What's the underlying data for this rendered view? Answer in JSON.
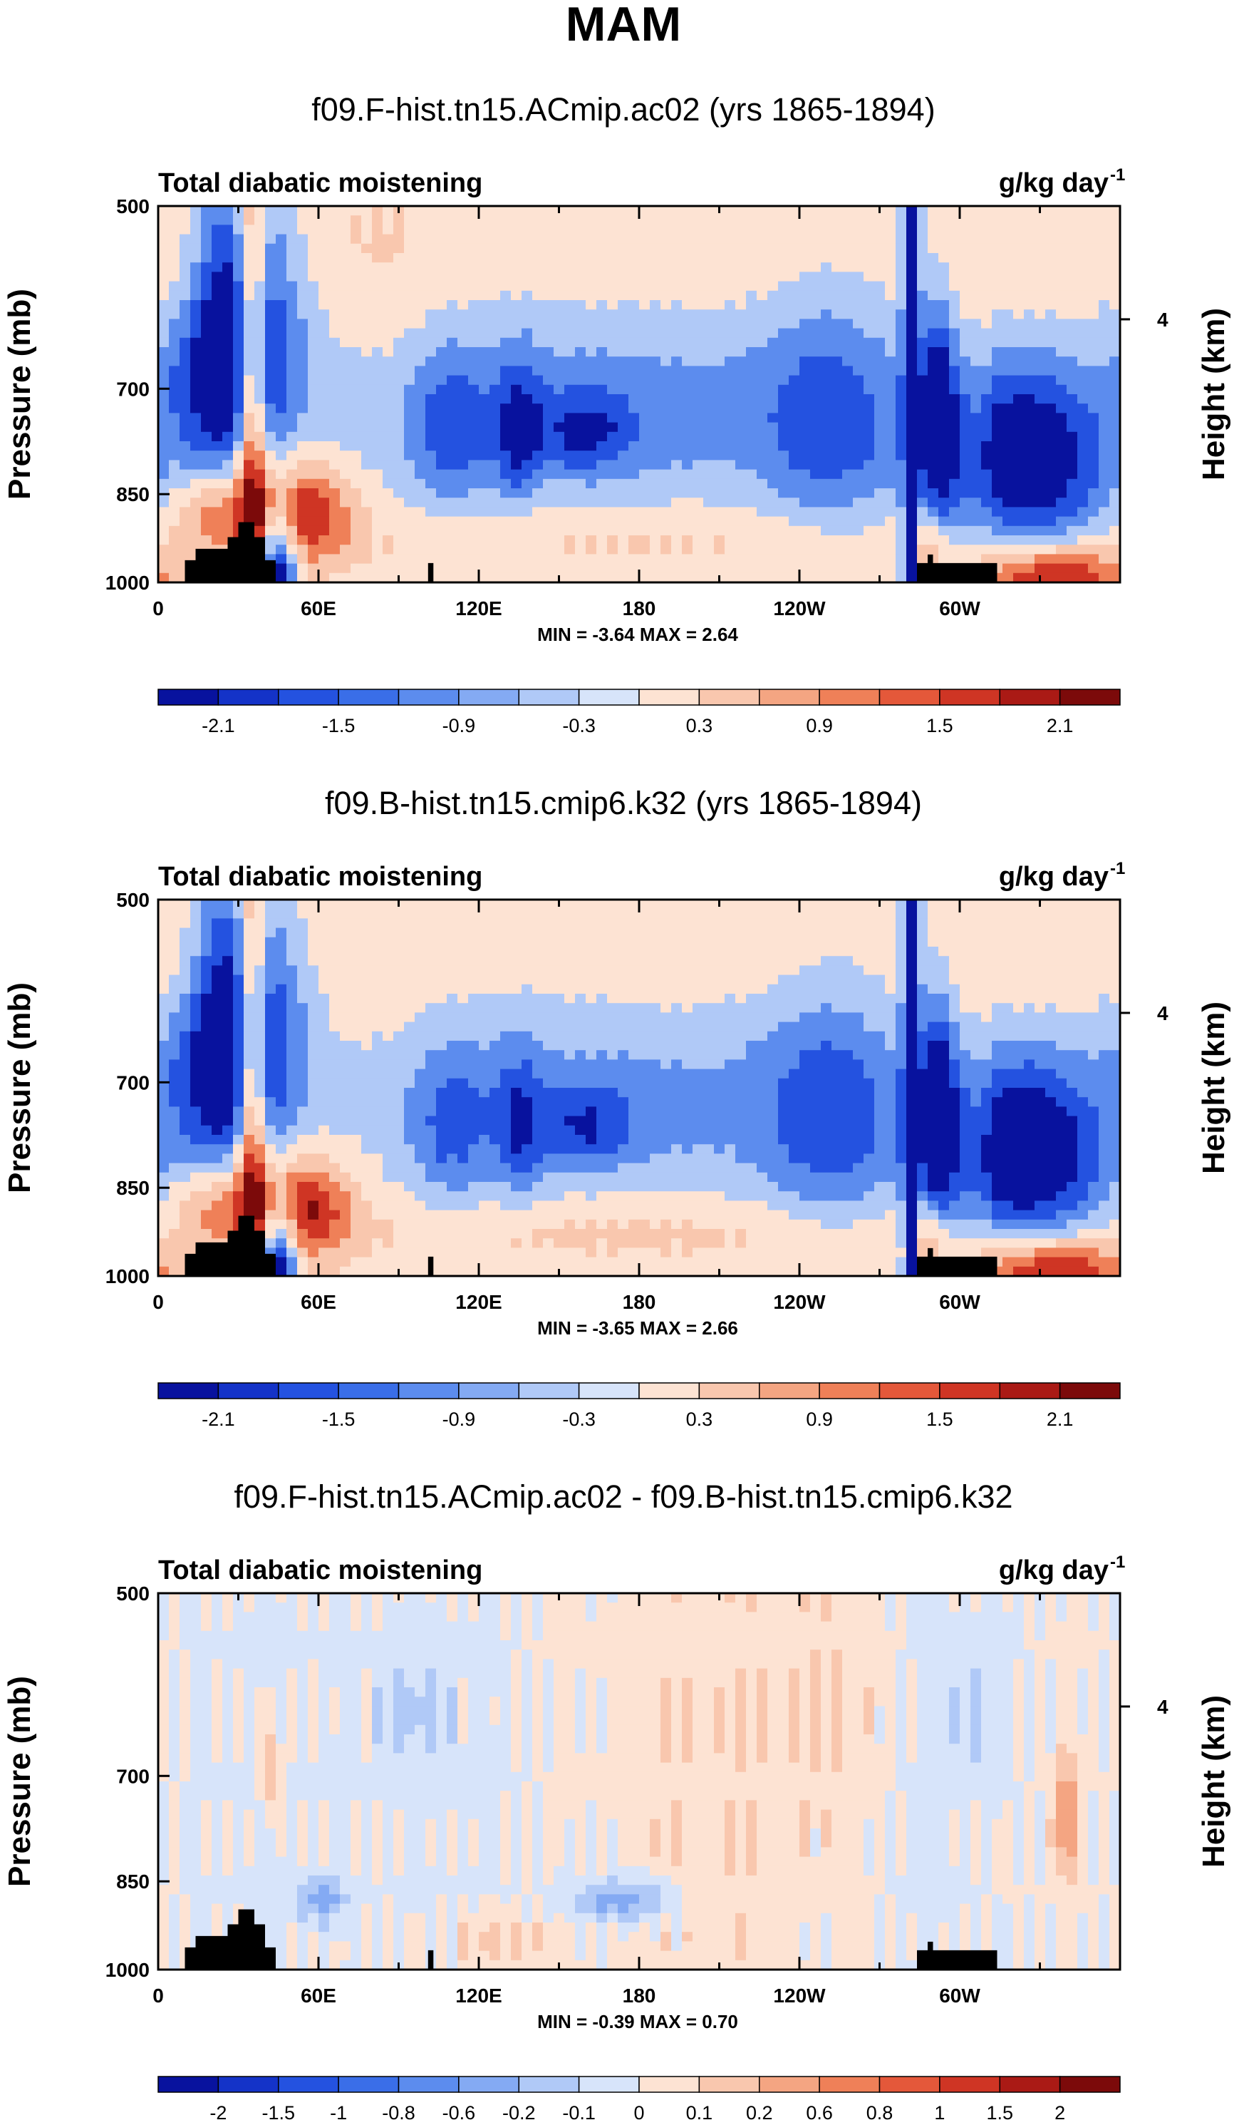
{
  "figure_title": "MAM",
  "chart_data": [
    {
      "type": "heatmap",
      "title": "f09.F-hist.tn15.ACmip.ac02 (yrs 1865-1894)",
      "left_string": "Total diabatic moistening",
      "right_string": "g/kg day",
      "right_string_superscript": "-1",
      "ylabel": "Pressure (mb)",
      "y2label": "Height (km)",
      "y2_ticks": [
        "4"
      ],
      "y2_tick_pressure": 616,
      "xlabel": "",
      "x_ticks": [
        "0",
        "60E",
        "120E",
        "180",
        "120W",
        "60W"
      ],
      "y_ticks": [
        "500",
        "700",
        "850",
        "1000"
      ],
      "xlim": [
        0,
        360
      ],
      "ylim": [
        1000,
        500
      ],
      "stats": "MIN = -3.64  MAX =  2.64",
      "min": -3.64,
      "max": 2.64,
      "colorbar_levels": [
        "-2.1",
        "-1.5",
        "-0.9",
        "-0.3",
        "0.3",
        "0.9",
        "1.5",
        "2.1"
      ],
      "colorbar_colors": [
        "#08129e",
        "#1433c8",
        "#2452e0",
        "#3a6ee8",
        "#5c8cee",
        "#84aaf3",
        "#b0c9f7",
        "#d7e4fa",
        "#fde3d3",
        "#f9c7ae",
        "#f4a582",
        "#ef8058",
        "#e4583a",
        "#cf3524",
        "#aa1a15",
        "#7c0a0a"
      ],
      "value_scale": 0.45,
      "features": [
        {
          "lon": 28,
          "p": 650,
          "slon": 16,
          "sp": 120,
          "amp": -3.3
        },
        {
          "lon": 35,
          "p": 700,
          "slon": 4,
          "sp": 200,
          "amp": 3.0
        },
        {
          "lon": 52,
          "p": 880,
          "slon": 14,
          "sp": 60,
          "amp": 2.4
        },
        {
          "lon": 20,
          "p": 880,
          "slon": 12,
          "sp": 50,
          "amp": 1.4
        },
        {
          "lon": 45,
          "p": 960,
          "slon": 5,
          "sp": 70,
          "amp": -3.0
        },
        {
          "lon": 10,
          "p": 560,
          "slon": 8,
          "sp": 60,
          "amp": 0.8
        },
        {
          "lon": 80,
          "p": 560,
          "slon": 25,
          "sp": 80,
          "amp": 0.4
        },
        {
          "lon": 170,
          "p": 730,
          "slon": 80,
          "sp": 100,
          "amp": -1.2
        },
        {
          "lon": 160,
          "p": 760,
          "slon": 12,
          "sp": 40,
          "amp": -1.3
        },
        {
          "lon": 110,
          "p": 760,
          "slon": 10,
          "sp": 80,
          "amp": -1.2
        },
        {
          "lon": 135,
          "p": 760,
          "slon": 6,
          "sp": 70,
          "amp": -1.5
        },
        {
          "lon": 180,
          "p": 920,
          "slon": 90,
          "sp": 40,
          "amp": 0.5
        },
        {
          "lon": 200,
          "p": 540,
          "slon": 60,
          "sp": 60,
          "amp": 0.35
        },
        {
          "lon": 252,
          "p": 750,
          "slon": 18,
          "sp": 120,
          "amp": -1.3
        },
        {
          "lon": 282,
          "p": 700,
          "slon": 2,
          "sp": 500,
          "amp": -3.6
        },
        {
          "lon": 292,
          "p": 740,
          "slon": 4,
          "sp": 100,
          "amp": -2.6
        },
        {
          "lon": 287,
          "p": 940,
          "slon": 5,
          "sp": 50,
          "amp": 1.0
        },
        {
          "lon": 325,
          "p": 800,
          "slon": 22,
          "sp": 100,
          "amp": -2.9
        },
        {
          "lon": 335,
          "p": 990,
          "slon": 20,
          "sp": 40,
          "amp": 2.4
        },
        {
          "lon": 330,
          "p": 560,
          "slon": 25,
          "sp": 60,
          "amp": 0.35
        },
        {
          "lon": 308,
          "p": 780,
          "slon": 3,
          "sp": 100,
          "amp": 0.5
        }
      ]
    },
    {
      "type": "heatmap",
      "title": "f09.B-hist.tn15.cmip6.k32 (yrs 1865-1894)",
      "left_string": "Total diabatic moistening",
      "right_string": "g/kg day",
      "right_string_superscript": "-1",
      "ylabel": "Pressure (mb)",
      "y2label": "Height (km)",
      "y2_ticks": [
        "4"
      ],
      "y2_tick_pressure": 616,
      "xlabel": "",
      "x_ticks": [
        "0",
        "60E",
        "120E",
        "180",
        "120W",
        "60W"
      ],
      "y_ticks": [
        "500",
        "700",
        "850",
        "1000"
      ],
      "xlim": [
        0,
        360
      ],
      "ylim": [
        1000,
        500
      ],
      "stats": "MIN = -3.65  MAX =  2.66",
      "min": -3.65,
      "max": 2.66,
      "colorbar_levels": [
        "-2.1",
        "-1.5",
        "-0.9",
        "-0.3",
        "0.3",
        "0.9",
        "1.5",
        "2.1"
      ],
      "colorbar_colors": [
        "#08129e",
        "#1433c8",
        "#2452e0",
        "#3a6ee8",
        "#5c8cee",
        "#84aaf3",
        "#b0c9f7",
        "#d7e4fa",
        "#fde3d3",
        "#f9c7ae",
        "#f4a582",
        "#ef8058",
        "#e4583a",
        "#cf3524",
        "#aa1a15",
        "#7c0a0a"
      ],
      "value_scale": 0.45,
      "features": [
        {
          "lon": 28,
          "p": 650,
          "slon": 16,
          "sp": 120,
          "amp": -3.3
        },
        {
          "lon": 35,
          "p": 700,
          "slon": 4,
          "sp": 200,
          "amp": 3.0
        },
        {
          "lon": 52,
          "p": 880,
          "slon": 14,
          "sp": 60,
          "amp": 2.5
        },
        {
          "lon": 20,
          "p": 880,
          "slon": 12,
          "sp": 50,
          "amp": 1.3
        },
        {
          "lon": 45,
          "p": 960,
          "slon": 5,
          "sp": 70,
          "amp": -3.0
        },
        {
          "lon": 10,
          "p": 560,
          "slon": 8,
          "sp": 60,
          "amp": 0.8
        },
        {
          "lon": 80,
          "p": 560,
          "slon": 25,
          "sp": 80,
          "amp": 0.3
        },
        {
          "lon": 170,
          "p": 730,
          "slon": 80,
          "sp": 100,
          "amp": -1.1
        },
        {
          "lon": 160,
          "p": 760,
          "slon": 12,
          "sp": 40,
          "amp": -1.2
        },
        {
          "lon": 110,
          "p": 760,
          "slon": 10,
          "sp": 80,
          "amp": -1.1
        },
        {
          "lon": 135,
          "p": 760,
          "slon": 6,
          "sp": 70,
          "amp": -1.3
        },
        {
          "lon": 180,
          "p": 920,
          "slon": 90,
          "sp": 40,
          "amp": 0.55
        },
        {
          "lon": 200,
          "p": 540,
          "slon": 60,
          "sp": 60,
          "amp": 0.35
        },
        {
          "lon": 252,
          "p": 750,
          "slon": 18,
          "sp": 120,
          "amp": -1.4
        },
        {
          "lon": 282,
          "p": 700,
          "slon": 2,
          "sp": 500,
          "amp": -3.6
        },
        {
          "lon": 292,
          "p": 740,
          "slon": 4,
          "sp": 100,
          "amp": -2.6
        },
        {
          "lon": 287,
          "p": 940,
          "slon": 5,
          "sp": 50,
          "amp": 1.0
        },
        {
          "lon": 325,
          "p": 800,
          "slon": 22,
          "sp": 100,
          "amp": -3.0
        },
        {
          "lon": 335,
          "p": 990,
          "slon": 20,
          "sp": 40,
          "amp": 2.4
        },
        {
          "lon": 330,
          "p": 560,
          "slon": 25,
          "sp": 60,
          "amp": 0.35
        },
        {
          "lon": 308,
          "p": 780,
          "slon": 3,
          "sp": 100,
          "amp": 0.5
        }
      ]
    },
    {
      "type": "heatmap",
      "title": "f09.F-hist.tn15.ACmip.ac02 - f09.B-hist.tn15.cmip6.k32",
      "left_string": "Total diabatic moistening",
      "right_string": "g/kg day",
      "right_string_superscript": "-1",
      "ylabel": "Pressure (mb)",
      "y2label": "Height (km)",
      "y2_ticks": [
        "4"
      ],
      "y2_tick_pressure": 616,
      "xlabel": "",
      "x_ticks": [
        "0",
        "60E",
        "120E",
        "180",
        "120W",
        "60W"
      ],
      "y_ticks": [
        "500",
        "700",
        "850",
        "1000"
      ],
      "xlim": [
        0,
        360
      ],
      "ylim": [
        1000,
        500
      ],
      "stats": "MIN = -0.39  MAX =  0.70",
      "min": -0.39,
      "max": 0.7,
      "colorbar_levels": [
        "-2",
        "-1.5",
        "-1",
        "-0.8",
        "-0.6",
        "-0.2",
        "-0.1",
        "0",
        "0.1",
        "0.2",
        "0.6",
        "0.8",
        "1",
        "1.5",
        "2"
      ],
      "colorbar_colors": [
        "#08129e",
        "#1433c8",
        "#2452e0",
        "#3a6ee8",
        "#5c8cee",
        "#84aaf3",
        "#b0c9f7",
        "#d7e4fa",
        "#fde3d3",
        "#f9c7ae",
        "#f4a582",
        "#ef8058",
        "#e4583a",
        "#cf3524",
        "#aa1a15",
        "#7c0a0a"
      ],
      "value_scale": 0.0,
      "features": [
        {
          "lon": 180,
          "p": 750,
          "slon": 200,
          "sp": 400,
          "amp": 0.02
        },
        {
          "lon": 40,
          "p": 750,
          "slon": 20,
          "sp": 300,
          "amp": -0.05
        },
        {
          "lon": 62,
          "p": 880,
          "slon": 6,
          "sp": 25,
          "amp": -0.25
        },
        {
          "lon": 110,
          "p": 750,
          "slon": 25,
          "sp": 250,
          "amp": -0.05
        },
        {
          "lon": 180,
          "p": 880,
          "slon": 10,
          "sp": 25,
          "amp": -0.22
        },
        {
          "lon": 165,
          "p": 880,
          "slon": 10,
          "sp": 30,
          "amp": -0.15
        },
        {
          "lon": 340,
          "p": 760,
          "slon": 3,
          "sp": 60,
          "amp": 0.35
        },
        {
          "lon": 290,
          "p": 750,
          "slon": 15,
          "sp": 300,
          "amp": -0.06
        },
        {
          "lon": 210,
          "p": 700,
          "slon": 30,
          "sp": 300,
          "amp": 0.06
        },
        {
          "lon": 125,
          "p": 950,
          "slon": 15,
          "sp": 40,
          "amp": 0.12
        },
        {
          "lon": 42,
          "p": 690,
          "slon": 3,
          "sp": 50,
          "amp": 0.18
        },
        {
          "lon": 95,
          "p": 620,
          "slon": 10,
          "sp": 60,
          "amp": -0.1
        },
        {
          "lon": 255,
          "p": 620,
          "slon": 15,
          "sp": 80,
          "amp": 0.08
        },
        {
          "lon": 310,
          "p": 620,
          "slon": 8,
          "sp": 60,
          "amp": -0.1
        }
      ]
    }
  ]
}
